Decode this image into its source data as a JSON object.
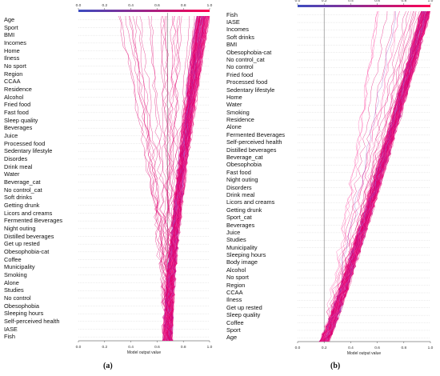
{
  "chart_data": [
    {
      "type": "line",
      "panel_label": "(a)",
      "xlabel": "Model output value",
      "xlim": [
        0.0,
        1.0
      ],
      "x_ticks": [
        "0.0",
        "0.2",
        "0.4",
        "0.6",
        "0.8",
        "1.0"
      ],
      "top_ticks": [
        "0.0",
        "0.2",
        "0.4",
        "0.6",
        "0.8",
        "1.0"
      ],
      "expected_value": 0.68,
      "colorbar": [
        "#3b4cc0",
        "#ff0052"
      ],
      "features_top_to_bottom": [
        "Age",
        "Sport",
        "BMI",
        "Incomes",
        "Home",
        "Ilness",
        "No sport",
        "Region",
        "CCAA",
        "Residence",
        "Alcohol",
        "Fried food",
        "Fast food",
        "Sleep quality",
        "Beverages",
        "Juice",
        "Processed food",
        "Sedentary lifestyle",
        "Disordes",
        "Drink meal",
        "Water",
        "Beverage_cat",
        "No control_cat",
        "Soft drinks",
        "Getting drunk",
        "Licors and creams",
        "Fermented Beverages",
        "Night outing",
        "Distilled beverages",
        "Get up rested",
        "Obesophobia-cat",
        "Coffee",
        "Municipality",
        "Smoking",
        "Alone",
        "Studies",
        "No control",
        "Obesophobia",
        "Sleeping hours",
        "Self-perceived health",
        "IASE",
        "Fish"
      ]
    },
    {
      "type": "line",
      "panel_label": "(b)",
      "xlabel": "Model output value",
      "xlim": [
        0.0,
        1.0
      ],
      "x_ticks": [
        "0.0",
        "0.2",
        "0.4",
        "0.6",
        "0.8",
        "1.0"
      ],
      "top_ticks": [
        "0.0",
        "0.2",
        "0.4",
        "0.6",
        "0.8",
        "1.0"
      ],
      "expected_value": 0.2,
      "colorbar": [
        "#3b4cc0",
        "#ff0052"
      ],
      "features_top_to_bottom": [
        "Fish",
        "IASE",
        "Incomes",
        "Soft drinks",
        "BMI",
        "Obesophobia-cat",
        "No control_cat",
        "No control",
        "Fried food",
        "Processed food",
        "Sedentary lifestyle",
        "Home",
        "Water",
        "Smoking",
        "Residence",
        "Alone",
        "Fermented Beverages",
        "Self-perceived health",
        "Distilled beverages",
        "Beverage_cat",
        "Obesophobia",
        "Fast food",
        "Night outing",
        "Disorders",
        "Drink meal",
        "Licors and creams",
        "Getting drunk",
        "Sport_cat",
        "Beverages",
        "Juice",
        "Studies",
        "Municipality",
        "Sleeping hours",
        "Body image",
        "Alcohol",
        "No sport",
        "Region",
        "CCAA",
        "Ilness",
        "Get up rested",
        "Sleep quality",
        "Coffee",
        "Sport",
        "Age"
      ]
    }
  ]
}
